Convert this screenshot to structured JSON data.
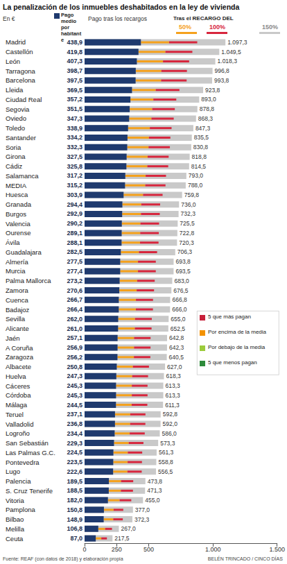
{
  "chart_data": {
    "type": "bar",
    "title": "La penalización de los inmuebles deshabitados en la ley de vivienda",
    "unit": "En €",
    "subtitle": "Pago tras los recargos",
    "header_note": "Tras el RECARGO DEL",
    "source": "Fuente: REAF (con datos de 2018) y elaboración propia",
    "credit": "BELÉN TRINCADO / CINCO DÍAS",
    "orientation": "horizontal",
    "data_labels": true,
    "grid": false,
    "xlim": [
      0,
      1500
    ],
    "xticks": [
      0,
      250,
      500,
      {
        "value": 1000,
        "label": "1.000"
      },
      {
        "value": 1500,
        "label": "1.500"
      }
    ],
    "categories": [
      "Madrid",
      "Castellón",
      "León",
      "Tarragona",
      "Barcelona",
      "Lleida",
      "Ciudad Real",
      "Segovia",
      "Oviedo",
      "Toledo",
      "Santander",
      "Soria",
      "Girona",
      "Cádiz",
      "Salamanca",
      "MEDIA",
      "Huesca",
      "Granada",
      "Burgos",
      "Valencia",
      "Ourense",
      "Ávila",
      "Guadalajara",
      "Almería",
      "Murcia",
      "Palma Mallorca",
      "Zamora",
      "Cuenca",
      "Badajoz",
      "Sevilla",
      "Alicante",
      "Jaén",
      "A Coruña",
      "Zaragoza",
      "Albacete",
      "Huelva",
      "Cáceres",
      "Córdoba",
      "Málaga",
      "Teruel",
      "Valladolid",
      "Logroño",
      "San Sebastián",
      "Las Palmas G.C.",
      "Pontevedra",
      "Lugo",
      "Palencia",
      "S. Cruz Tenerife",
      "Vitoria",
      "Pamplona",
      "Bilbao",
      "Melilla",
      "Ceuta"
    ],
    "series": [
      {
        "name": "Pago medio por habitante",
        "type": "bar",
        "color": "#1f3a6e",
        "values": [
          438.9,
          419.8,
          407.3,
          398.7,
          397.5,
          369.5,
          357.2,
          351.5,
          347.3,
          338.9,
          334.2,
          332.3,
          327.5,
          325.8,
          317.2,
          315.2,
          303.9,
          294.4,
          292.9,
          290.2,
          289.1,
          288.1,
          282.5,
          277.5,
          277.4,
          273.2,
          270.6,
          266.7,
          266.4,
          262.0,
          261.0,
          257.1,
          256.9,
          256.2,
          250.8,
          247.3,
          245.3,
          245.3,
          244.5,
          237.1,
          236.8,
          234.4,
          229.3,
          224.5,
          223.5,
          222.6,
          189.5,
          188.5,
          182.0,
          150.8,
          148.9,
          106.8,
          87.0
        ],
        "value_labels": [
          "438,9",
          "419,8",
          "407,3",
          "398,7",
          "397,5",
          "369,5",
          "357,2",
          "351,5",
          "347,3",
          "338,9",
          "334,2",
          "332,3",
          "327,5",
          "325,8",
          "317,2",
          "315,2",
          "303,9",
          "294,4",
          "292,9",
          "290,2",
          "289,1",
          "288,1",
          "282,5",
          "277,5",
          "277,4",
          "273,2",
          "270,6",
          "266,7",
          "266,4",
          "262,0",
          "261,0",
          "257,1",
          "256,9",
          "256,2",
          "250,8",
          "247,3",
          "245,3",
          "245,3",
          "244,5",
          "237,1",
          "236,8",
          "234,4",
          "229,3",
          "224,5",
          "223,5",
          "222,6",
          "189,5",
          "188,5",
          "182,0",
          "150,8",
          "148,9",
          "106,8",
          "87,0"
        ]
      },
      {
        "name": "50%",
        "type": "segment",
        "color": "#f5a11c",
        "values": [
          658.35,
          629.7,
          610.95,
          598.05,
          596.25,
          554.25,
          535.8,
          527.25,
          520.95,
          508.35,
          501.3,
          498.45,
          491.25,
          488.7,
          475.8,
          472.8,
          455.85,
          441.6,
          439.35,
          435.3,
          433.65,
          432.15,
          423.75,
          416.25,
          416.1,
          409.8,
          405.9,
          400.05,
          399.6,
          393.0,
          391.5,
          385.65,
          385.35,
          384.3,
          376.2,
          370.95,
          367.95,
          367.95,
          366.75,
          355.65,
          355.2,
          351.6,
          343.95,
          336.75,
          335.25,
          333.9,
          284.25,
          282.75,
          273.0,
          226.2,
          223.35,
          160.2,
          130.5
        ]
      },
      {
        "name": "100%",
        "type": "segment",
        "color": "#d7263d",
        "values": [
          877.8,
          839.6,
          814.6,
          797.4,
          795.0,
          739.0,
          714.4,
          703.0,
          694.6,
          677.8,
          668.4,
          664.6,
          655.0,
          651.6,
          634.4,
          630.4,
          607.8,
          588.8,
          585.8,
          580.4,
          578.2,
          576.2,
          565.0,
          555.0,
          554.8,
          546.4,
          541.2,
          533.4,
          532.8,
          524.0,
          522.0,
          514.2,
          513.8,
          512.4,
          501.6,
          494.6,
          490.6,
          490.6,
          489.0,
          474.2,
          473.6,
          468.8,
          458.6,
          449.0,
          447.0,
          445.2,
          379.0,
          377.0,
          364.0,
          301.6,
          297.8,
          213.6,
          174.0
        ]
      },
      {
        "name": "150%",
        "type": "bar",
        "color": "#c9c9c9",
        "values": [
          1097.3,
          1049.5,
          1018.3,
          996.8,
          993.8,
          923.8,
          893.0,
          878.8,
          868.3,
          847.3,
          835.5,
          830.8,
          818.8,
          814.5,
          793.0,
          788.0,
          759.8,
          736.0,
          732.3,
          725.5,
          722.8,
          720.3,
          706.3,
          693.8,
          693.5,
          683.0,
          676.5,
          666.8,
          666.0,
          655.0,
          652.5,
          642.8,
          642.3,
          640.5,
          627.0,
          618.3,
          613.3,
          613.3,
          611.3,
          592.8,
          592.0,
          586.0,
          573.3,
          561.3,
          558.8,
          556.5,
          473.8,
          471.3,
          455.0,
          377.0,
          372.3,
          267.0,
          217.5
        ],
        "value_labels": [
          "1.097,3",
          "1.049,5",
          "1.018,3",
          "996,8",
          "993,8",
          "923,8",
          "893,0",
          "878,8",
          "868,3",
          "847,3",
          "835,5",
          "830,8",
          "818,8",
          "814,5",
          "793,0",
          "788,0",
          "759,8",
          "736,0",
          "732,3",
          "725,5",
          "722,8",
          "720,3",
          "706,3",
          "693,8",
          "693,5",
          "683,0",
          "676,5",
          "666,8",
          "666,0",
          "655,0",
          "652,5",
          "642,8",
          "642,3",
          "640,5",
          "627,0",
          "618,3",
          "613,3",
          "613,3",
          "611,3",
          "592,8",
          "592,0",
          "586,0",
          "573,3",
          "561,3",
          "558,8",
          "556,5",
          "473,8",
          "471,3",
          "455,0",
          "377,0",
          "372,3",
          "267,0",
          "217,5"
        ]
      }
    ],
    "map_legend": [
      {
        "label": "5 que más pagan",
        "color": "#c8203a"
      },
      {
        "label": "Por encima de la media",
        "color": "#f39200"
      },
      {
        "label": "Por debajo de la media",
        "color": "#9ccc3c"
      },
      {
        "label": "5 que menos pagan",
        "color": "#2e8b3a"
      }
    ]
  }
}
